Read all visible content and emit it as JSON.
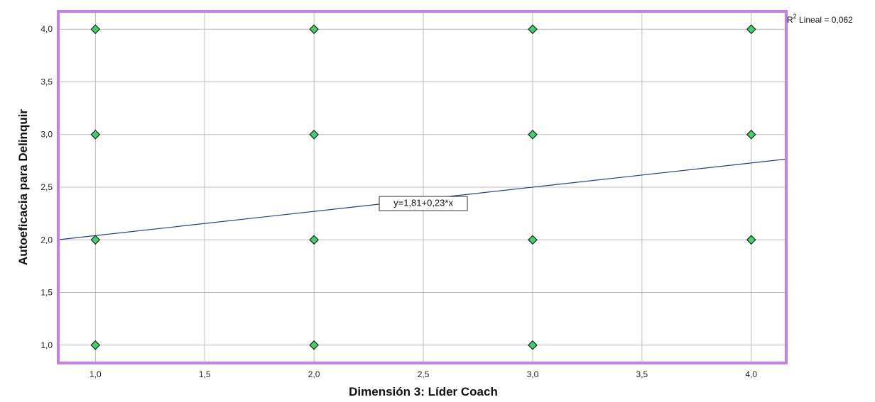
{
  "chart_data": {
    "type": "scatter",
    "xlabel": "Dimensión 3: Líder Coach",
    "ylabel": "Autoeficacia para Delinquir",
    "xlim": [
      0.83,
      4.16
    ],
    "ylim": [
      0.83,
      4.17
    ],
    "x_ticks": [
      "1,0",
      "1,5",
      "2,0",
      "2,5",
      "3,0",
      "3,5",
      "4,0"
    ],
    "y_ticks": [
      "1,0",
      "1,5",
      "2,0",
      "2,5",
      "3,0",
      "3,5",
      "4,0"
    ],
    "x_tick_values": [
      1.0,
      1.5,
      2.0,
      2.5,
      3.0,
      3.5,
      4.0
    ],
    "y_tick_values": [
      1.0,
      1.5,
      2.0,
      2.5,
      3.0,
      3.5,
      4.0
    ],
    "grid": true,
    "points": [
      {
        "x": 1,
        "y": 4
      },
      {
        "x": 2,
        "y": 4
      },
      {
        "x": 3,
        "y": 4
      },
      {
        "x": 4,
        "y": 4
      },
      {
        "x": 1,
        "y": 3
      },
      {
        "x": 2,
        "y": 3
      },
      {
        "x": 3,
        "y": 3
      },
      {
        "x": 4,
        "y": 3
      },
      {
        "x": 1,
        "y": 2
      },
      {
        "x": 2,
        "y": 2
      },
      {
        "x": 3,
        "y": 2
      },
      {
        "x": 4,
        "y": 2
      },
      {
        "x": 1,
        "y": 1
      },
      {
        "x": 2,
        "y": 1
      },
      {
        "x": 3,
        "y": 1
      }
    ],
    "fit_line": {
      "intercept": 1.81,
      "slope": 0.23,
      "equation": "y=1,81+0,23*x"
    },
    "r2_label": {
      "prefix": "R",
      "sup": "2",
      "text": " Lineal = 0,062"
    },
    "colors": {
      "frame": "#c77ee6",
      "grid": "#bdbdbd",
      "marker_fill": "#3cd46a",
      "marker_stroke": "#1e1e1e",
      "fit_line": "#24408e"
    }
  }
}
